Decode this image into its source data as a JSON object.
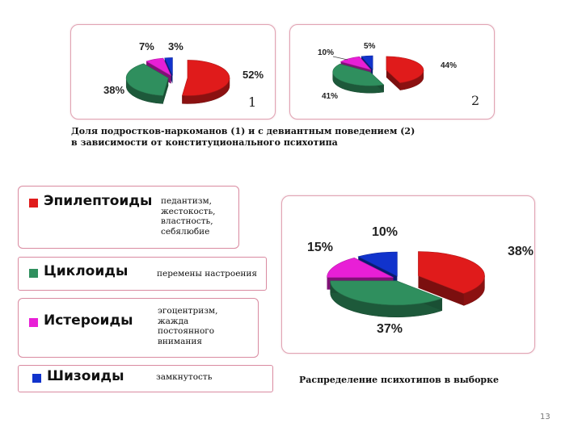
{
  "chart_data": [
    {
      "type": "pie",
      "chart_label": "1",
      "slices": [
        {
          "label": "52%",
          "value": 52,
          "color": "#e01b1b"
        },
        {
          "label": "38%",
          "value": 38,
          "color": "#2f8f5e"
        },
        {
          "label": "7%",
          "value": 7,
          "color": "#e81fd6"
        },
        {
          "label": "3%",
          "value": 3,
          "color": "#1133cc"
        }
      ]
    },
    {
      "type": "pie",
      "chart_label": "2",
      "slices": [
        {
          "label": "44%",
          "value": 44,
          "color": "#e01b1b"
        },
        {
          "label": "41%",
          "value": 41,
          "color": "#2f8f5e"
        },
        {
          "label": "10%",
          "value": 10,
          "color": "#e81fd6"
        },
        {
          "label": "5%",
          "value": 5,
          "color": "#1133cc"
        }
      ]
    },
    {
      "type": "pie",
      "slices": [
        {
          "label": "38%",
          "value": 38,
          "color": "#e01b1b"
        },
        {
          "label": "37%",
          "value": 37,
          "color": "#2f8f5e"
        },
        {
          "label": "15%",
          "value": 15,
          "color": "#e81fd6"
        },
        {
          "label": "10%",
          "value": 10,
          "color": "#1133cc"
        }
      ]
    }
  ],
  "caption_top": {
    "line1": "Доля подростков-наркоманов (1) и с девиантным поведением (2)",
    "line2": "в зависимости от конституционального психотипа"
  },
  "caption_bottom": "Распределение психотипов в выборке",
  "types": [
    {
      "name": "Эпилептоиды",
      "color": "#e01b1b",
      "traits": "педантизм,\nжестокость,\nвластность,\nсебялюбие"
    },
    {
      "name": "Циклоиды",
      "color": "#2f8f5e",
      "traits": "перемены настроения"
    },
    {
      "name": "Истероиды",
      "color": "#e81fd6",
      "traits": "эгоцентризм,\nжажда\nпостоянного\nвнимания"
    },
    {
      "name": "Шизоиды",
      "color": "#1133cc",
      "traits": "замкнутость"
    }
  ],
  "page_number": "13"
}
